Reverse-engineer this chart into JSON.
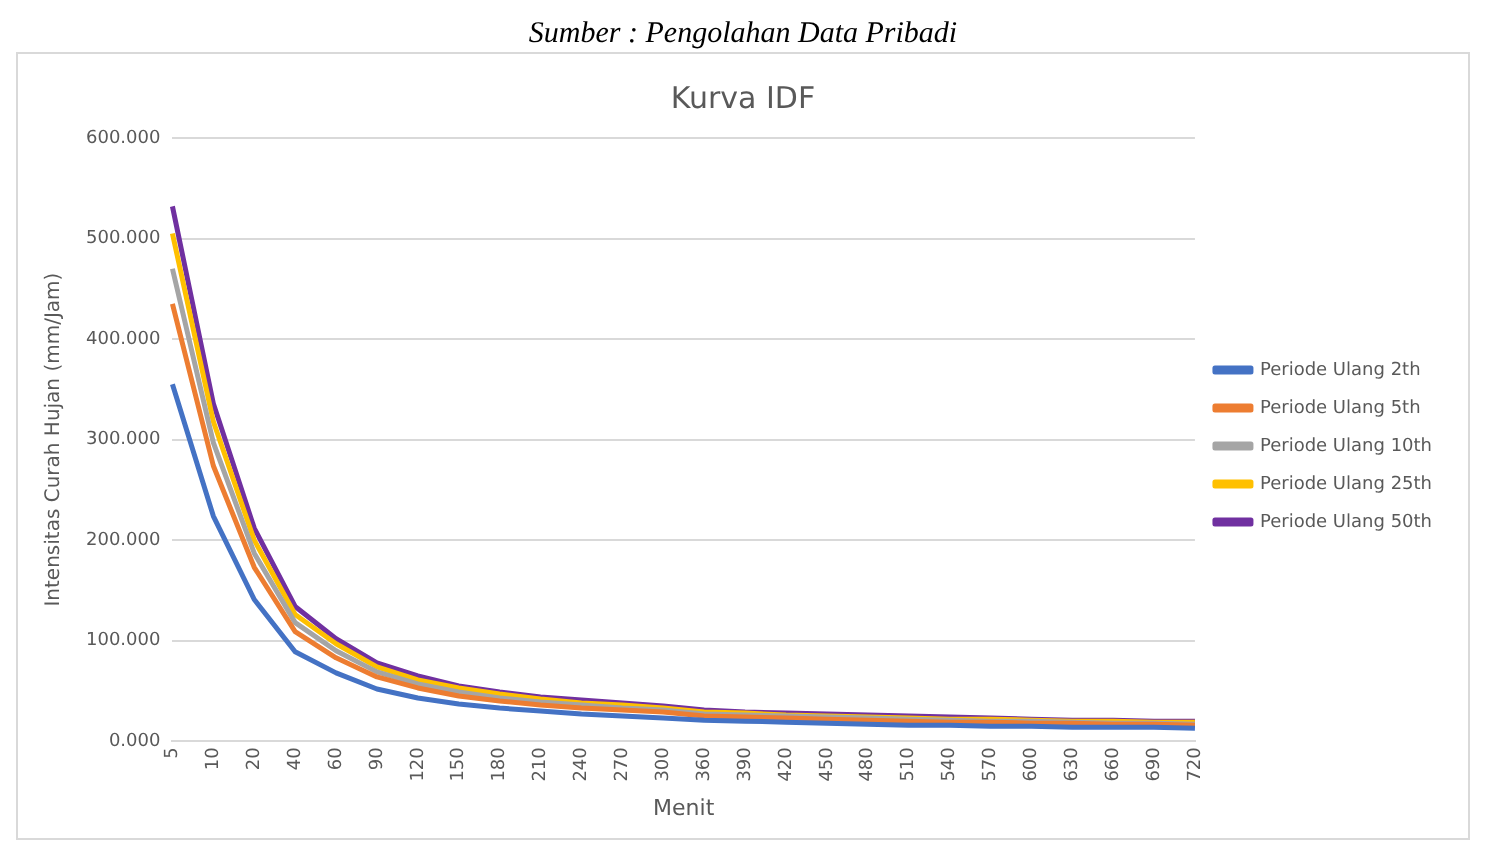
{
  "chart_data": {
    "type": "line",
    "title": "Kurva IDF",
    "xlabel": "Menit",
    "ylabel": "Intensitas Curah Hujan (mm/Jam)",
    "annotations": [
      "Sumber : Pengolahan Data Pribadi"
    ],
    "categories": [
      "5",
      "10",
      "20",
      "40",
      "60",
      "90",
      "120",
      "150",
      "180",
      "210",
      "240",
      "270",
      "300",
      "360",
      "390",
      "420",
      "450",
      "480",
      "510",
      "540",
      "570",
      "600",
      "630",
      "660",
      "690",
      "720"
    ],
    "series": [
      {
        "name": "Periode Ulang 2th",
        "color": "#4472c4",
        "values": [
          355,
          224,
          141,
          89,
          68,
          52,
          43,
          37,
          33,
          30,
          27,
          25,
          23,
          21,
          20,
          19,
          18,
          17,
          16,
          16,
          15,
          15,
          14,
          14,
          14,
          13
        ]
      },
      {
        "name": "Periode Ulang 5th",
        "color": "#ed7d31",
        "values": [
          435,
          274,
          173,
          109,
          83,
          64,
          53,
          45,
          40,
          36,
          33,
          31,
          29,
          25,
          24,
          23,
          22,
          21,
          20,
          19,
          19,
          18,
          18,
          17,
          17,
          16
        ]
      },
      {
        "name": "Periode Ulang 10th",
        "color": "#a5a5a5",
        "values": [
          470,
          297,
          187,
          118,
          90,
          69,
          57,
          49,
          43,
          39,
          36,
          33,
          31,
          27,
          26,
          25,
          24,
          23,
          22,
          21,
          20,
          20,
          19,
          18,
          18,
          17
        ]
      },
      {
        "name": "Periode Ulang 25th",
        "color": "#ffc000",
        "values": [
          505,
          318,
          200,
          126,
          97,
          74,
          61,
          53,
          47,
          42,
          38,
          36,
          33,
          29,
          28,
          26,
          25,
          24,
          23,
          22,
          22,
          21,
          20,
          20,
          19,
          19
        ]
      },
      {
        "name": "Periode Ulang 50th",
        "color": "#7030a0",
        "values": [
          532,
          336,
          212,
          134,
          102,
          78,
          65,
          55,
          49,
          44,
          41,
          38,
          35,
          31,
          29,
          28,
          27,
          26,
          25,
          24,
          23,
          22,
          21,
          21,
          20,
          20
        ]
      }
    ],
    "ylim": [
      0,
      600
    ],
    "yticks": [
      {
        "value": 0,
        "label": "0.000"
      },
      {
        "value": 100,
        "label": "100.000"
      },
      {
        "value": 200,
        "label": "200.000"
      },
      {
        "value": 300,
        "label": "300.000"
      },
      {
        "value": 400,
        "label": "400.000"
      },
      {
        "value": 500,
        "label": "500.000"
      },
      {
        "value": 600,
        "label": "600.000"
      }
    ],
    "grid": "y",
    "legend": "right",
    "marker": "none",
    "line_style": "solid"
  }
}
